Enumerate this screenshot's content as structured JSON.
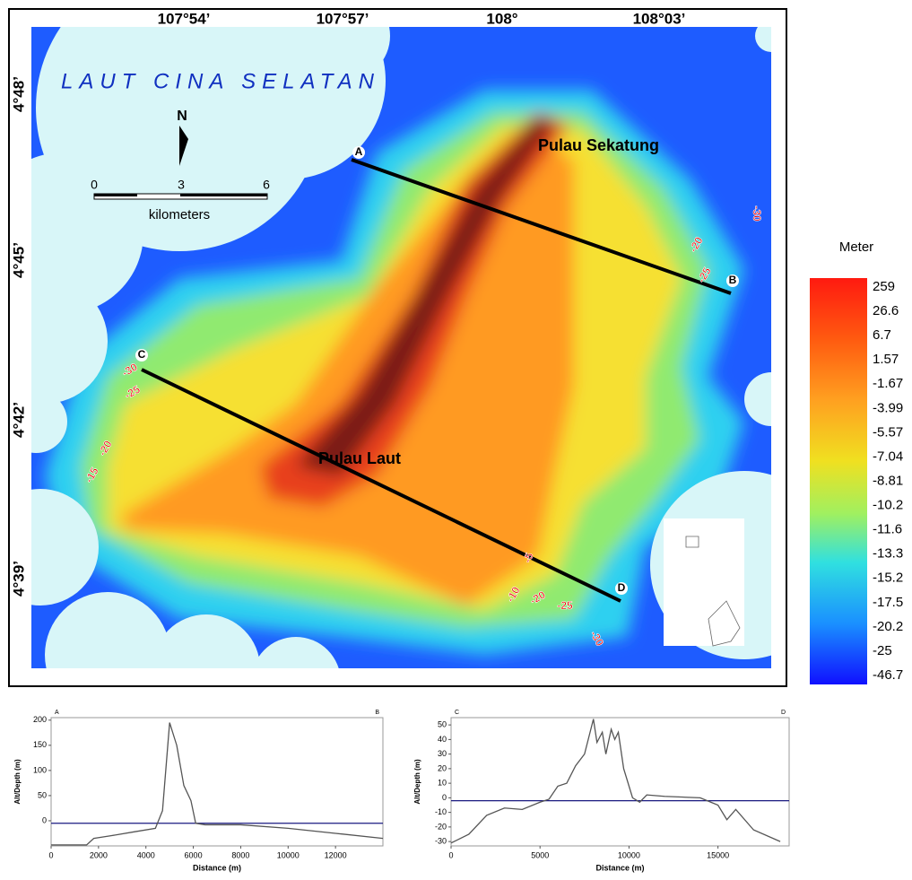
{
  "map": {
    "sea_label": "LAUT CINA SELATAN",
    "island_labels": [
      "Pulau Sekatung",
      "Pulau Laut"
    ],
    "lon_labels": [
      "107°54’",
      "107°57’",
      "108°",
      "108°03’"
    ],
    "lat_labels": [
      "4°48’",
      "4°45’",
      "4°42’",
      "4°39’"
    ],
    "points": [
      "A",
      "B",
      "C",
      "D"
    ],
    "contour_labels": [
      "-30",
      "-20",
      "-25",
      "-30",
      "-25",
      "-20",
      "-15",
      "-5",
      "-10",
      "-20",
      "-25",
      "-30"
    ],
    "north": "N",
    "scale_ticks": [
      "0",
      "3",
      "6"
    ],
    "scale_unit": "kilometers"
  },
  "legend": {
    "title": "Meter",
    "labels": [
      "259",
      "26.6",
      "6.7",
      "1.57",
      "-1.67",
      "-3.99",
      "-5.57",
      "-7.04",
      "-8.81",
      "-10.2",
      "-11.6",
      "-13.3",
      "-15.2",
      "-17.5",
      "-20.2",
      "-25",
      "-46.7"
    ]
  },
  "profiles": [
    {
      "type": "line",
      "start_label": "A",
      "end_label": "B",
      "y_label": "Alt/Depth (m)",
      "x_label": "Distance (m)",
      "x": [
        0,
        1500,
        1800,
        2500,
        3500,
        4400,
        4700,
        5000,
        5300,
        5600,
        5900,
        6100,
        6500,
        8000,
        10000,
        12000,
        14000
      ],
      "values": [
        -48,
        -48,
        -35,
        -30,
        -22,
        -15,
        20,
        195,
        150,
        70,
        40,
        -5,
        -8,
        -8,
        -15,
        -25,
        -35
      ],
      "hline": -5,
      "xlim": [
        0,
        14000
      ],
      "ylim": [
        -50,
        205
      ],
      "xticks": [
        0,
        2000,
        4000,
        6000,
        8000,
        10000,
        12000
      ],
      "yticks": [
        0,
        50,
        100,
        150,
        200
      ]
    },
    {
      "type": "line",
      "start_label": "C",
      "end_label": "D",
      "y_label": "Alt/Depth (m)",
      "x_label": "Distance (m)",
      "x": [
        0,
        1000,
        2000,
        3000,
        4000,
        5000,
        5500,
        6000,
        6500,
        7000,
        7500,
        8000,
        8200,
        8500,
        8700,
        9000,
        9200,
        9400,
        9700,
        10200,
        10600,
        11000,
        12000,
        14000,
        15000,
        15500,
        16000,
        17000,
        18500
      ],
      "values": [
        -31,
        -25,
        -12,
        -7,
        -8,
        -3,
        -1,
        8,
        10,
        22,
        30,
        54,
        38,
        45,
        30,
        47,
        40,
        45,
        20,
        0,
        -3,
        2,
        1,
        0,
        -5,
        -15,
        -8,
        -22,
        -30
      ],
      "hline": -2,
      "xlim": [
        0,
        19000
      ],
      "ylim": [
        -33,
        55
      ],
      "xticks": [
        0,
        5000,
        10000,
        15000
      ],
      "yticks": [
        -30,
        -20,
        -10,
        0,
        10,
        20,
        30,
        40,
        50
      ]
    }
  ]
}
